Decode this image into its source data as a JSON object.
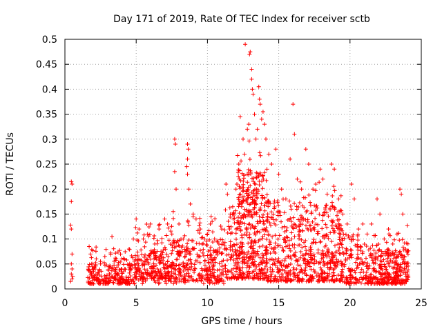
{
  "chart_data": {
    "type": "scatter",
    "title": "Day 171 of 2019, Rate Of TEC Index for receiver sctb",
    "xlabel": "GPS time / hours",
    "ylabel": "ROTI / TECUs",
    "xlim": [
      0,
      25
    ],
    "ylim": [
      0,
      0.5
    ],
    "xticks": [
      0,
      5,
      10,
      15,
      20,
      25
    ],
    "xtick_labels": [
      "0",
      "5",
      "10",
      "15",
      "20",
      "25"
    ],
    "yticks": [
      0,
      0.05,
      0.1,
      0.15,
      0.2,
      0.25,
      0.3,
      0.35,
      0.4,
      0.45,
      0.5
    ],
    "ytick_labels": [
      "0",
      "0.05",
      "0.1",
      "0.15",
      "0.2",
      "0.25",
      "0.3",
      "0.35",
      "0.4",
      "0.45",
      "0.5"
    ],
    "grid": true,
    "marker": "+",
    "color": "#ff0000",
    "series": [
      {
        "name": "ROTI",
        "points": [
          [
            0.45,
            0.215
          ],
          [
            0.5,
            0.21
          ],
          [
            0.45,
            0.175
          ],
          [
            0.4,
            0.128
          ],
          [
            0.45,
            0.12
          ],
          [
            0.5,
            0.07
          ],
          [
            0.45,
            0.05
          ],
          [
            0.5,
            0.04
          ],
          [
            0.45,
            0.03
          ],
          [
            0.5,
            0.02
          ],
          [
            0.4,
            0.015
          ],
          [
            0.55,
            0.025
          ],
          [
            1.7,
            0.085
          ],
          [
            1.8,
            0.07
          ],
          [
            1.9,
            0.05
          ],
          [
            2.0,
            0.04
          ],
          [
            2.2,
            0.06
          ],
          [
            2.5,
            0.05
          ],
          [
            2.8,
            0.065
          ],
          [
            3.1,
            0.045
          ],
          [
            3.3,
            0.105
          ],
          [
            3.6,
            0.06
          ],
          [
            3.9,
            0.07
          ],
          [
            4.2,
            0.04
          ],
          [
            4.5,
            0.08
          ],
          [
            4.8,
            0.1
          ],
          [
            5.0,
            0.14
          ],
          [
            5.2,
            0.12
          ],
          [
            5.5,
            0.1
          ],
          [
            5.8,
            0.11
          ],
          [
            6.0,
            0.13
          ],
          [
            6.3,
            0.09
          ],
          [
            6.6,
            0.12
          ],
          [
            7.0,
            0.14
          ],
          [
            7.2,
            0.13
          ],
          [
            7.5,
            0.11
          ],
          [
            7.7,
            0.3
          ],
          [
            7.75,
            0.29
          ],
          [
            7.7,
            0.235
          ],
          [
            7.8,
            0.2
          ],
          [
            7.6,
            0.155
          ],
          [
            8.0,
            0.13
          ],
          [
            8.3,
            0.1
          ],
          [
            8.6,
            0.29
          ],
          [
            8.65,
            0.28
          ],
          [
            8.6,
            0.26
          ],
          [
            8.55,
            0.245
          ],
          [
            8.6,
            0.23
          ],
          [
            8.7,
            0.2
          ],
          [
            8.8,
            0.17
          ],
          [
            9.0,
            0.15
          ],
          [
            9.2,
            0.14
          ],
          [
            9.5,
            0.12
          ],
          [
            9.8,
            0.1
          ],
          [
            10.0,
            0.11
          ],
          [
            10.2,
            0.13
          ],
          [
            10.5,
            0.1
          ],
          [
            10.8,
            0.09
          ],
          [
            11.0,
            0.12
          ],
          [
            11.3,
            0.21
          ],
          [
            11.4,
            0.19
          ],
          [
            11.6,
            0.15
          ],
          [
            11.8,
            0.14
          ],
          [
            12.0,
            0.2
          ],
          [
            12.2,
            0.25
          ],
          [
            12.3,
            0.345
          ],
          [
            12.5,
            0.3
          ],
          [
            12.6,
            0.27
          ],
          [
            12.65,
            0.49
          ],
          [
            12.8,
            0.32
          ],
          [
            12.9,
            0.33
          ],
          [
            12.95,
            0.47
          ],
          [
            13.0,
            0.475
          ],
          [
            13.1,
            0.44
          ],
          [
            13.1,
            0.42
          ],
          [
            13.15,
            0.4
          ],
          [
            13.2,
            0.39
          ],
          [
            13.3,
            0.35
          ],
          [
            13.4,
            0.3
          ],
          [
            13.5,
            0.32
          ],
          [
            13.6,
            0.405
          ],
          [
            13.65,
            0.38
          ],
          [
            13.7,
            0.37
          ],
          [
            13.8,
            0.34
          ],
          [
            13.9,
            0.355
          ],
          [
            14.0,
            0.33
          ],
          [
            14.1,
            0.3
          ],
          [
            14.3,
            0.27
          ],
          [
            14.5,
            0.25
          ],
          [
            14.8,
            0.28
          ],
          [
            15.0,
            0.23
          ],
          [
            15.2,
            0.2
          ],
          [
            15.5,
            0.18
          ],
          [
            15.8,
            0.26
          ],
          [
            16.0,
            0.37
          ],
          [
            16.1,
            0.31
          ],
          [
            16.3,
            0.22
          ],
          [
            16.6,
            0.2
          ],
          [
            16.9,
            0.28
          ],
          [
            17.1,
            0.25
          ],
          [
            17.4,
            0.2
          ],
          [
            17.6,
            0.21
          ],
          [
            17.9,
            0.24
          ],
          [
            18.1,
            0.22
          ],
          [
            18.4,
            0.19
          ],
          [
            18.7,
            0.25
          ],
          [
            18.9,
            0.24
          ],
          [
            19.2,
            0.18
          ],
          [
            19.5,
            0.15
          ],
          [
            19.8,
            0.13
          ],
          [
            20.1,
            0.21
          ],
          [
            20.3,
            0.18
          ],
          [
            20.6,
            0.12
          ],
          [
            20.9,
            0.13
          ],
          [
            21.2,
            0.11
          ],
          [
            21.5,
            0.13
          ],
          [
            21.9,
            0.18
          ],
          [
            22.1,
            0.15
          ],
          [
            22.4,
            0.1
          ],
          [
            22.7,
            0.12
          ],
          [
            23.0,
            0.09
          ],
          [
            23.3,
            0.11
          ],
          [
            23.5,
            0.2
          ],
          [
            23.6,
            0.19
          ],
          [
            23.7,
            0.15
          ],
          [
            23.9,
            0.08
          ]
        ],
        "density_bands": [
          {
            "x": [
              1.6,
              4.9
            ],
            "ymin": 0.01,
            "ymax": 0.05,
            "count": 170
          },
          {
            "x": [
              1.6,
              4.9
            ],
            "ymin": 0.01,
            "ymax": 0.085,
            "count": 70
          },
          {
            "x": [
              4.9,
              7.5
            ],
            "ymin": 0.02,
            "ymax": 0.08,
            "count": 170
          },
          {
            "x": [
              4.9,
              7.5
            ],
            "ymin": 0.01,
            "ymax": 0.13,
            "count": 80
          },
          {
            "x": [
              7.5,
              11.2
            ],
            "ymin": 0.015,
            "ymax": 0.1,
            "count": 230
          },
          {
            "x": [
              7.5,
              11.2
            ],
            "ymin": 0.01,
            "ymax": 0.145,
            "count": 90
          },
          {
            "x": [
              11.2,
              12.0
            ],
            "ymin": 0.02,
            "ymax": 0.17,
            "count": 70
          },
          {
            "x": [
              12.0,
              14.2
            ],
            "ymin": 0.02,
            "ymax": 0.24,
            "count": 340
          },
          {
            "x": [
              12.0,
              14.2
            ],
            "ymin": 0.05,
            "ymax": 0.3,
            "count": 90
          },
          {
            "x": [
              14.2,
              16.5
            ],
            "ymin": 0.015,
            "ymax": 0.18,
            "count": 250
          },
          {
            "x": [
              16.5,
              19.5
            ],
            "ymin": 0.015,
            "ymax": 0.17,
            "count": 280
          },
          {
            "x": [
              16.5,
              19.5
            ],
            "ymin": 0.05,
            "ymax": 0.22,
            "count": 70
          },
          {
            "x": [
              19.5,
              22.0
            ],
            "ymin": 0.01,
            "ymax": 0.11,
            "count": 200
          },
          {
            "x": [
              22.0,
              24.1
            ],
            "ymin": 0.01,
            "ymax": 0.08,
            "count": 200
          },
          {
            "x": [
              22.0,
              24.1
            ],
            "ymin": 0.01,
            "ymax": 0.13,
            "count": 60
          }
        ]
      }
    ]
  }
}
